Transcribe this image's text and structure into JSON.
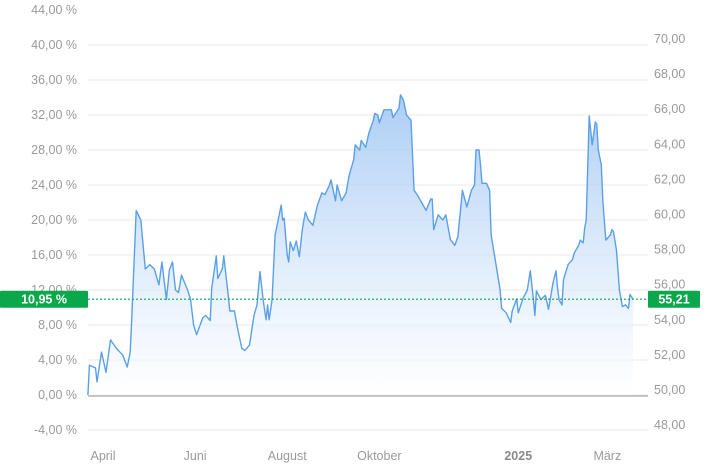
{
  "chart_data": {
    "type": "area",
    "title": "",
    "xlabel": "",
    "ylabel": "",
    "grid": true,
    "legend": "none",
    "y_left": {
      "range": [
        -4,
        44
      ],
      "ticks": [
        "44,00 %",
        "40,00 %",
        "36,00 %",
        "32,00 %",
        "28,00 %",
        "24,00 %",
        "20,00 %",
        "16,00 %",
        "12,00 %",
        "8,00 %",
        "4,00 %",
        "0,00 %",
        "-4,00 %"
      ],
      "tick_values": [
        44,
        40,
        36,
        32,
        28,
        24,
        20,
        16,
        12,
        8,
        4,
        0,
        -4
      ]
    },
    "y_right": {
      "ticks": [
        "70,00",
        "68,00",
        "66,00",
        "64,00",
        "62,00",
        "60,00",
        "58,00",
        "56,00",
        "54,00",
        "52,00",
        "50,00",
        "48,00"
      ],
      "tick_values": [
        70,
        68,
        66,
        64,
        62,
        60,
        58,
        56,
        54,
        52,
        50,
        48
      ]
    },
    "x_ticks": [
      {
        "label": "April",
        "date": "2024-04-01",
        "bold": false
      },
      {
        "label": "Juni",
        "date": "2024-06-01",
        "bold": false
      },
      {
        "label": "August",
        "date": "2024-08-01",
        "bold": false
      },
      {
        "label": "Oktober",
        "date": "2024-10-01",
        "bold": false
      },
      {
        "label": "2025",
        "date": "2025-01-01",
        "bold": true
      },
      {
        "label": "März",
        "date": "2025-03-01",
        "bold": false
      }
    ],
    "current": {
      "percent_label": "10,95 %",
      "price_label": "55,21",
      "percent": 10.95
    },
    "colors": {
      "line": "#5aa0e8",
      "fill_top": "#9cc4f3",
      "fill_bottom": "#ffffff",
      "badge": "#0aa84a",
      "grid": "#e8e8e8",
      "baseline": "#b5b5b5"
    },
    "points": [
      [
        "2024-03-22",
        0.0
      ],
      [
        "2024-03-23",
        3.4
      ],
      [
        "2024-03-27",
        3.1
      ],
      [
        "2024-03-28",
        1.5
      ],
      [
        "2024-03-31",
        4.9
      ],
      [
        "2024-04-03",
        2.6
      ],
      [
        "2024-04-06",
        6.3
      ],
      [
        "2024-04-10",
        5.3
      ],
      [
        "2024-04-14",
        4.6
      ],
      [
        "2024-04-17",
        3.2
      ],
      [
        "2024-04-19",
        4.9
      ],
      [
        "2024-04-20",
        8.6
      ],
      [
        "2024-04-23",
        21.1
      ],
      [
        "2024-04-26",
        20.0
      ],
      [
        "2024-04-29",
        14.4
      ],
      [
        "2024-05-02",
        14.9
      ],
      [
        "2024-05-05",
        14.4
      ],
      [
        "2024-05-08",
        12.6
      ],
      [
        "2024-05-10",
        15.2
      ],
      [
        "2024-05-13",
        10.9
      ],
      [
        "2024-05-15",
        14.3
      ],
      [
        "2024-05-17",
        15.2
      ],
      [
        "2024-05-19",
        12.0
      ],
      [
        "2024-05-21",
        11.7
      ],
      [
        "2024-05-23",
        13.7
      ],
      [
        "2024-05-27",
        12.0
      ],
      [
        "2024-05-29",
        10.9
      ],
      [
        "2024-05-31",
        8.0
      ],
      [
        "2024-06-02",
        6.9
      ],
      [
        "2024-06-06",
        8.8
      ],
      [
        "2024-06-08",
        9.1
      ],
      [
        "2024-06-11",
        8.5
      ],
      [
        "2024-06-12",
        12.2
      ],
      [
        "2024-06-15",
        15.9
      ],
      [
        "2024-06-16",
        13.3
      ],
      [
        "2024-06-19",
        14.4
      ],
      [
        "2024-06-20",
        15.9
      ],
      [
        "2024-06-23",
        11.3
      ],
      [
        "2024-06-24",
        9.6
      ],
      [
        "2024-06-27",
        9.6
      ],
      [
        "2024-06-29",
        7.7
      ],
      [
        "2024-07-02",
        5.3
      ],
      [
        "2024-07-04",
        5.1
      ],
      [
        "2024-07-07",
        5.7
      ],
      [
        "2024-07-10",
        9.1
      ],
      [
        "2024-07-12",
        10.3
      ],
      [
        "2024-07-14",
        14.1
      ],
      [
        "2024-07-16",
        10.9
      ],
      [
        "2024-07-18",
        8.6
      ],
      [
        "2024-07-19",
        10.3
      ],
      [
        "2024-07-20",
        8.6
      ],
      [
        "2024-07-22",
        10.9
      ],
      [
        "2024-07-24",
        18.3
      ],
      [
        "2024-07-28",
        21.7
      ],
      [
        "2024-07-29",
        20.0
      ],
      [
        "2024-07-30",
        20.2
      ],
      [
        "2024-08-01",
        16.0
      ],
      [
        "2024-08-02",
        15.2
      ],
      [
        "2024-08-03",
        17.5
      ],
      [
        "2024-08-05",
        16.5
      ],
      [
        "2024-08-07",
        17.6
      ],
      [
        "2024-08-09",
        15.8
      ],
      [
        "2024-08-11",
        18.9
      ],
      [
        "2024-08-13",
        20.9
      ],
      [
        "2024-08-15",
        20.0
      ],
      [
        "2024-08-18",
        19.4
      ],
      [
        "2024-08-21",
        21.7
      ],
      [
        "2024-08-24",
        23.1
      ],
      [
        "2024-08-26",
        22.9
      ],
      [
        "2024-08-29",
        24.0
      ],
      [
        "2024-08-30",
        24.6
      ],
      [
        "2024-09-02",
        22.2
      ],
      [
        "2024-09-03",
        24.0
      ],
      [
        "2024-09-06",
        22.2
      ],
      [
        "2024-09-09",
        23.1
      ],
      [
        "2024-09-11",
        25.1
      ],
      [
        "2024-09-14",
        26.9
      ],
      [
        "2024-09-15",
        28.6
      ],
      [
        "2024-09-18",
        28.0
      ],
      [
        "2024-09-19",
        29.1
      ],
      [
        "2024-09-22",
        28.3
      ],
      [
        "2024-09-24",
        29.9
      ],
      [
        "2024-09-27",
        31.4
      ],
      [
        "2024-09-28",
        32.2
      ],
      [
        "2024-09-30",
        32.0
      ],
      [
        "2024-10-01",
        31.1
      ],
      [
        "2024-10-04",
        32.6
      ],
      [
        "2024-10-06",
        32.6
      ],
      [
        "2024-10-09",
        32.6
      ],
      [
        "2024-10-10",
        31.7
      ],
      [
        "2024-10-13",
        32.5
      ],
      [
        "2024-10-14",
        32.8
      ],
      [
        "2024-10-15",
        34.3
      ],
      [
        "2024-10-17",
        33.7
      ],
      [
        "2024-10-19",
        32.0
      ],
      [
        "2024-10-22",
        31.4
      ],
      [
        "2024-10-24",
        23.4
      ],
      [
        "2024-10-26",
        22.9
      ],
      [
        "2024-10-28",
        22.3
      ],
      [
        "2024-11-01",
        21.1
      ],
      [
        "2024-11-04",
        22.4
      ],
      [
        "2024-11-05",
        22.4
      ],
      [
        "2024-11-06",
        18.9
      ],
      [
        "2024-11-09",
        20.6
      ],
      [
        "2024-11-12",
        20.0
      ],
      [
        "2024-11-14",
        20.6
      ],
      [
        "2024-11-17",
        17.8
      ],
      [
        "2024-11-20",
        17.1
      ],
      [
        "2024-11-22",
        18.1
      ],
      [
        "2024-11-25",
        23.4
      ],
      [
        "2024-11-28",
        21.5
      ],
      [
        "2024-12-01",
        23.4
      ],
      [
        "2024-12-03",
        24.0
      ],
      [
        "2024-12-04",
        28.0
      ],
      [
        "2024-12-06",
        28.0
      ],
      [
        "2024-12-07",
        26.3
      ],
      [
        "2024-12-08",
        24.2
      ],
      [
        "2024-12-11",
        24.2
      ],
      [
        "2024-12-13",
        23.4
      ],
      [
        "2024-12-14",
        18.3
      ],
      [
        "2024-12-17",
        15.2
      ],
      [
        "2024-12-20",
        12.0
      ],
      [
        "2024-12-21",
        9.9
      ],
      [
        "2024-12-24",
        9.4
      ],
      [
        "2024-12-27",
        8.3
      ],
      [
        "2024-12-28",
        9.6
      ],
      [
        "2024-12-31",
        11.0
      ],
      [
        "2025-01-01",
        9.4
      ],
      [
        "2025-01-04",
        11.0
      ],
      [
        "2025-01-07",
        12.0
      ],
      [
        "2025-01-09",
        14.2
      ],
      [
        "2025-01-11",
        10.9
      ],
      [
        "2025-01-12",
        9.1
      ],
      [
        "2025-01-13",
        11.9
      ],
      [
        "2025-01-16",
        10.9
      ],
      [
        "2025-01-19",
        11.4
      ],
      [
        "2025-01-21",
        9.8
      ],
      [
        "2025-01-24",
        12.8
      ],
      [
        "2025-01-26",
        14.2
      ],
      [
        "2025-01-27",
        12.3
      ],
      [
        "2025-01-28",
        10.9
      ],
      [
        "2025-01-30",
        10.3
      ],
      [
        "2025-01-31",
        13.2
      ],
      [
        "2025-02-03",
        14.9
      ],
      [
        "2025-02-06",
        15.5
      ],
      [
        "2025-02-07",
        16.2
      ],
      [
        "2025-02-10",
        17.1
      ],
      [
        "2025-02-11",
        17.7
      ],
      [
        "2025-02-13",
        17.4
      ],
      [
        "2025-02-14",
        19.1
      ],
      [
        "2025-02-15",
        20.0
      ],
      [
        "2025-02-17",
        31.9
      ],
      [
        "2025-02-18",
        30.2
      ],
      [
        "2025-02-19",
        28.6
      ],
      [
        "2025-02-21",
        31.2
      ],
      [
        "2025-02-22",
        30.9
      ],
      [
        "2025-02-23",
        28.0
      ],
      [
        "2025-02-25",
        26.3
      ],
      [
        "2025-02-26",
        22.3
      ],
      [
        "2025-02-28",
        17.7
      ],
      [
        "2025-03-03",
        18.3
      ],
      [
        "2025-03-04",
        18.9
      ],
      [
        "2025-03-05",
        18.7
      ],
      [
        "2025-03-07",
        16.6
      ],
      [
        "2025-03-08",
        14.4
      ],
      [
        "2025-03-09",
        12.0
      ],
      [
        "2025-03-11",
        10.1
      ],
      [
        "2025-03-13",
        10.3
      ],
      [
        "2025-03-15",
        9.9
      ],
      [
        "2025-03-16",
        11.5
      ],
      [
        "2025-03-18",
        10.95
      ]
    ]
  }
}
